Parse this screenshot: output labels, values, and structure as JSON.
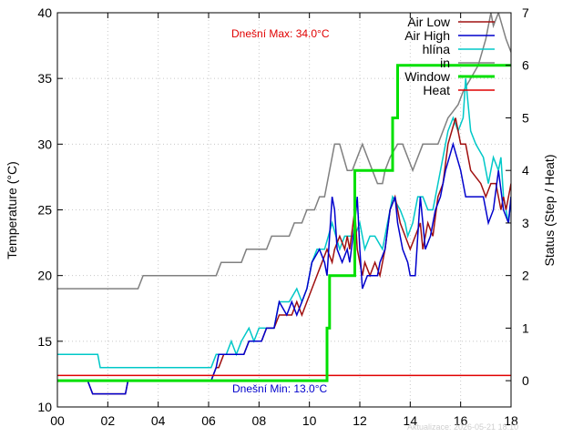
{
  "chart_data": {
    "type": "line",
    "xlabel": "",
    "ylabel": "Temperature (°C)",
    "y2label": "Status (Step / Heat)",
    "xlim": [
      0,
      18
    ],
    "ylim": [
      10,
      40
    ],
    "y2lim": [
      -0.5,
      7
    ],
    "x_ticks": [
      0,
      2,
      4,
      6,
      8,
      10,
      12,
      14,
      16,
      18
    ],
    "x_tick_labels": [
      "00",
      "02",
      "04",
      "06",
      "08",
      "10",
      "12",
      "14",
      "16",
      "18"
    ],
    "y_ticks": [
      10,
      15,
      20,
      25,
      30,
      35,
      40
    ],
    "y2_ticks": [
      0,
      1,
      2,
      3,
      4,
      5,
      6,
      7
    ],
    "grid": true,
    "legend_position": "top-right",
    "annotations": {
      "max_text": "Dnešní Max: 34.0°C",
      "min_text": "Dnešní Min: 13.0°C",
      "max_color": "#e00000",
      "min_color": "#0000cc"
    },
    "footer_text": "Aktualizace: 2026-05-21 18:10",
    "series": [
      {
        "name": "Air Low",
        "axis": "y",
        "color": "#a01010",
        "points": [
          [
            0,
            12
          ],
          [
            1.2,
            12
          ],
          [
            1.4,
            11
          ],
          [
            2.7,
            11
          ],
          [
            2.8,
            12
          ],
          [
            6.1,
            12
          ],
          [
            6.3,
            13
          ],
          [
            6.4,
            13
          ],
          [
            6.6,
            14
          ],
          [
            7.4,
            14
          ],
          [
            7.6,
            15
          ],
          [
            8.1,
            15
          ],
          [
            8.3,
            16
          ],
          [
            8.6,
            16
          ],
          [
            8.8,
            17
          ],
          [
            9.3,
            17
          ],
          [
            9.5,
            18
          ],
          [
            9.7,
            17
          ],
          [
            9.9,
            18
          ],
          [
            10.1,
            19
          ],
          [
            10.5,
            21
          ],
          [
            10.7,
            22
          ],
          [
            10.9,
            21
          ],
          [
            11.0,
            22
          ],
          [
            11.2,
            23
          ],
          [
            11.4,
            22
          ],
          [
            11.5,
            23
          ],
          [
            11.6,
            22
          ],
          [
            11.8,
            25
          ],
          [
            11.9,
            22
          ],
          [
            12.1,
            20
          ],
          [
            12.2,
            21
          ],
          [
            12.4,
            20
          ],
          [
            12.6,
            21
          ],
          [
            12.8,
            20
          ],
          [
            13.0,
            22
          ],
          [
            13.2,
            25
          ],
          [
            13.4,
            26
          ],
          [
            13.6,
            24
          ],
          [
            13.8,
            23
          ],
          [
            14.0,
            22
          ],
          [
            14.2,
            23
          ],
          [
            14.4,
            24
          ],
          [
            14.5,
            22
          ],
          [
            14.7,
            24
          ],
          [
            14.9,
            23
          ],
          [
            15.1,
            26
          ],
          [
            15.3,
            27
          ],
          [
            15.5,
            30
          ],
          [
            15.8,
            32
          ],
          [
            16.0,
            30
          ],
          [
            16.2,
            30
          ],
          [
            16.4,
            28
          ],
          [
            16.8,
            27
          ],
          [
            17.0,
            26
          ],
          [
            17.2,
            27
          ],
          [
            17.4,
            27
          ],
          [
            17.6,
            25
          ],
          [
            17.7,
            26
          ],
          [
            17.8,
            25
          ],
          [
            18.0,
            27
          ]
        ]
      },
      {
        "name": "Air High",
        "axis": "y",
        "color": "#0000cc",
        "points": [
          [
            0,
            12
          ],
          [
            1.2,
            12
          ],
          [
            1.4,
            11
          ],
          [
            2.7,
            11
          ],
          [
            2.8,
            12
          ],
          [
            6.1,
            12
          ],
          [
            6.3,
            13
          ],
          [
            6.4,
            14
          ],
          [
            7.4,
            14
          ],
          [
            7.6,
            15
          ],
          [
            8.1,
            15
          ],
          [
            8.3,
            16
          ],
          [
            8.6,
            16
          ],
          [
            8.8,
            18
          ],
          [
            9.1,
            17
          ],
          [
            9.3,
            18
          ],
          [
            9.5,
            17
          ],
          [
            9.7,
            18
          ],
          [
            9.9,
            19
          ],
          [
            10.1,
            21
          ],
          [
            10.4,
            22
          ],
          [
            10.6,
            21
          ],
          [
            10.7,
            20
          ],
          [
            10.9,
            26
          ],
          [
            11.0,
            25
          ],
          [
            11.1,
            22
          ],
          [
            11.3,
            21
          ],
          [
            11.5,
            22
          ],
          [
            11.6,
            21
          ],
          [
            11.8,
            24
          ],
          [
            11.9,
            26
          ],
          [
            12.0,
            22
          ],
          [
            12.1,
            19
          ],
          [
            12.3,
            20
          ],
          [
            12.7,
            20
          ],
          [
            12.8,
            21
          ],
          [
            13.0,
            22
          ],
          [
            13.2,
            25
          ],
          [
            13.4,
            26
          ],
          [
            13.5,
            24
          ],
          [
            13.7,
            22
          ],
          [
            13.9,
            21
          ],
          [
            14.0,
            20
          ],
          [
            14.2,
            20
          ],
          [
            14.3,
            23
          ],
          [
            14.4,
            26
          ],
          [
            14.5,
            24
          ],
          [
            14.6,
            22
          ],
          [
            14.8,
            23
          ],
          [
            15.0,
            25
          ],
          [
            15.2,
            26
          ],
          [
            15.4,
            28
          ],
          [
            15.7,
            30
          ],
          [
            16.0,
            28
          ],
          [
            16.2,
            26
          ],
          [
            16.4,
            26
          ],
          [
            16.9,
            26
          ],
          [
            17.1,
            24
          ],
          [
            17.3,
            25
          ],
          [
            17.5,
            28
          ],
          [
            17.7,
            25
          ],
          [
            17.9,
            24
          ],
          [
            18.0,
            26
          ]
        ]
      },
      {
        "name": "hlína",
        "axis": "y",
        "color": "#00c8c8",
        "points": [
          [
            0,
            14
          ],
          [
            1.6,
            14
          ],
          [
            1.7,
            13
          ],
          [
            6.1,
            13
          ],
          [
            6.3,
            14
          ],
          [
            6.7,
            14
          ],
          [
            6.9,
            15
          ],
          [
            7.1,
            14
          ],
          [
            7.3,
            15
          ],
          [
            7.6,
            16
          ],
          [
            7.8,
            15
          ],
          [
            8.0,
            16
          ],
          [
            8.6,
            16
          ],
          [
            8.8,
            18
          ],
          [
            9.2,
            18
          ],
          [
            9.5,
            19
          ],
          [
            9.7,
            18
          ],
          [
            9.9,
            19
          ],
          [
            10.1,
            21
          ],
          [
            10.3,
            22
          ],
          [
            10.6,
            22
          ],
          [
            10.9,
            24
          ],
          [
            11.2,
            22
          ],
          [
            11.4,
            23
          ],
          [
            11.8,
            23
          ],
          [
            12.0,
            24
          ],
          [
            12.2,
            22
          ],
          [
            12.4,
            23
          ],
          [
            12.6,
            23
          ],
          [
            12.9,
            22
          ],
          [
            13.1,
            24
          ],
          [
            13.3,
            26
          ],
          [
            13.6,
            25
          ],
          [
            13.8,
            24
          ],
          [
            13.9,
            23
          ],
          [
            14.1,
            24
          ],
          [
            14.3,
            26
          ],
          [
            14.5,
            26
          ],
          [
            14.7,
            25
          ],
          [
            14.9,
            25
          ],
          [
            15.1,
            27
          ],
          [
            15.3,
            29
          ],
          [
            15.5,
            31
          ],
          [
            15.7,
            32
          ],
          [
            15.9,
            31
          ],
          [
            16.1,
            32
          ],
          [
            16.2,
            35
          ],
          [
            16.4,
            31
          ],
          [
            16.6,
            30
          ],
          [
            16.9,
            29
          ],
          [
            17.1,
            27
          ],
          [
            17.3,
            29
          ],
          [
            17.5,
            28
          ],
          [
            17.6,
            29
          ],
          [
            17.7,
            26
          ],
          [
            17.9,
            24
          ],
          [
            18.0,
            26
          ]
        ]
      },
      {
        "name": "in",
        "axis": "y",
        "color": "#808080",
        "points": [
          [
            0,
            19
          ],
          [
            3.2,
            19
          ],
          [
            3.4,
            20
          ],
          [
            6.3,
            20
          ],
          [
            6.5,
            21
          ],
          [
            7.3,
            21
          ],
          [
            7.5,
            22
          ],
          [
            8.3,
            22
          ],
          [
            8.5,
            23
          ],
          [
            9.2,
            23
          ],
          [
            9.4,
            24
          ],
          [
            9.7,
            24
          ],
          [
            9.9,
            25
          ],
          [
            10.2,
            25
          ],
          [
            10.4,
            26
          ],
          [
            10.6,
            26
          ],
          [
            10.8,
            28
          ],
          [
            11.0,
            30
          ],
          [
            11.2,
            30
          ],
          [
            11.5,
            28
          ],
          [
            11.7,
            28
          ],
          [
            11.9,
            29
          ],
          [
            12.1,
            30
          ],
          [
            12.3,
            29
          ],
          [
            12.5,
            28
          ],
          [
            12.7,
            27
          ],
          [
            12.9,
            27
          ],
          [
            13.0,
            28
          ],
          [
            13.2,
            29
          ],
          [
            13.5,
            30
          ],
          [
            13.7,
            30
          ],
          [
            13.9,
            29
          ],
          [
            14.1,
            28
          ],
          [
            14.3,
            29
          ],
          [
            14.5,
            30
          ],
          [
            15.1,
            30
          ],
          [
            15.3,
            31
          ],
          [
            15.5,
            32
          ],
          [
            15.7,
            32.5
          ],
          [
            15.9,
            33
          ],
          [
            16.1,
            34
          ],
          [
            16.4,
            35
          ],
          [
            16.7,
            36
          ],
          [
            17.0,
            38
          ],
          [
            17.2,
            40
          ],
          [
            17.3,
            39
          ],
          [
            17.5,
            40
          ],
          [
            17.8,
            38
          ],
          [
            18.0,
            37
          ]
        ]
      },
      {
        "name": "Window",
        "axis": "y2",
        "color": "#00e000",
        "points": [
          [
            0,
            0
          ],
          [
            10.7,
            0
          ],
          [
            10.7,
            1
          ],
          [
            10.8,
            1
          ],
          [
            10.8,
            2
          ],
          [
            11.8,
            2
          ],
          [
            11.8,
            4
          ],
          [
            13.3,
            4
          ],
          [
            13.3,
            5
          ],
          [
            13.5,
            5
          ],
          [
            13.5,
            6
          ],
          [
            18,
            6
          ]
        ]
      },
      {
        "name": "Heat",
        "axis": "y2",
        "color": "#e00000",
        "points": [
          [
            0,
            0.1
          ],
          [
            18,
            0.1
          ]
        ]
      }
    ]
  }
}
